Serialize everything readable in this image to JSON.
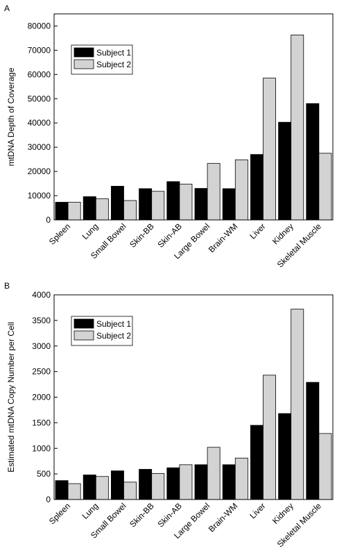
{
  "chart_data": [
    {
      "type": "bar",
      "label": "A",
      "ylabel": "mtDNA Depth of Coverage",
      "categories": [
        "Spleen",
        "Lung",
        "Small Bowel",
        "Skin-BB",
        "Skin-AB",
        "Large Bowel",
        "Brain-WM",
        "Liver",
        "Kidney",
        "Skeletal Muscle"
      ],
      "series": [
        {
          "name": "Subject 1",
          "color": "#000000",
          "values": [
            7300,
            9600,
            13900,
            12900,
            15800,
            13000,
            12900,
            27000,
            40300,
            48000
          ]
        },
        {
          "name": "Subject 2",
          "color": "#d3d3d3",
          "values": [
            7300,
            8700,
            8000,
            11800,
            14800,
            23300,
            24800,
            58500,
            76300,
            27500
          ]
        }
      ],
      "ylim": [
        0,
        85000
      ],
      "yticks": [
        0,
        10000,
        20000,
        30000,
        40000,
        50000,
        60000,
        70000,
        80000
      ],
      "legend": "upper left"
    },
    {
      "type": "bar",
      "label": "B",
      "ylabel": "Estimated mtDNA Copy Number per Cell",
      "categories": [
        "Spleen",
        "Lung",
        "Small Bowel",
        "Skin-BB",
        "Skin-AB",
        "Large Bowel",
        "Brain-WM",
        "Liver",
        "Kidney",
        "Skeletal Muscle"
      ],
      "series": [
        {
          "name": "Subject 1",
          "color": "#000000",
          "values": [
            370,
            480,
            560,
            590,
            620,
            680,
            680,
            1450,
            1680,
            2290
          ]
        },
        {
          "name": "Subject 2",
          "color": "#d3d3d3",
          "values": [
            310,
            450,
            340,
            510,
            680,
            1020,
            810,
            2430,
            3720,
            1290
          ]
        }
      ],
      "ylim": [
        0,
        4000
      ],
      "yticks": [
        0,
        500,
        1000,
        1500,
        2000,
        2500,
        3000,
        3500,
        4000
      ],
      "legend": "upper left"
    }
  ]
}
